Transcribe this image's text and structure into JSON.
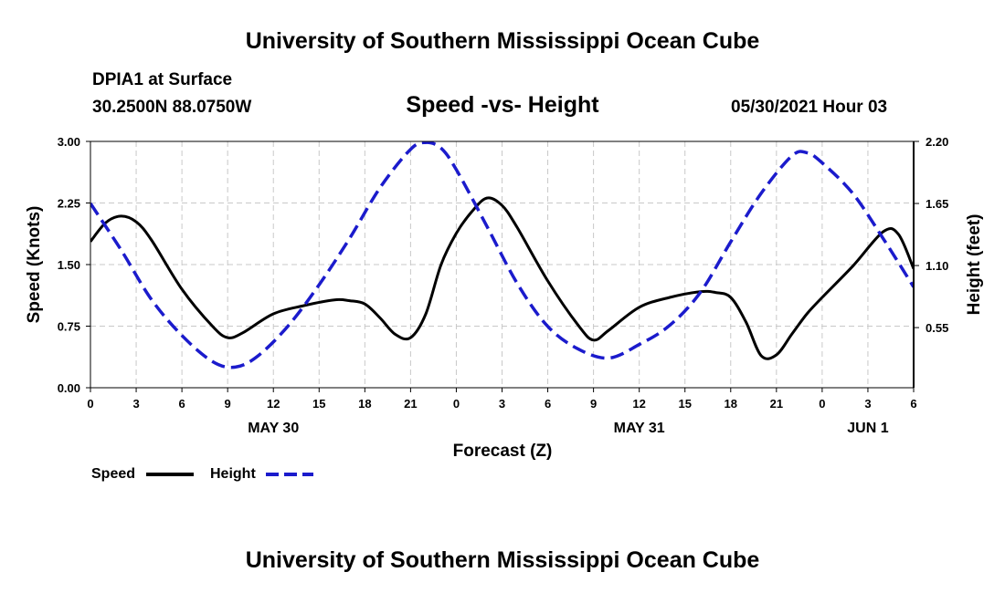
{
  "header": {
    "title": "University of Southern Mississippi Ocean Cube",
    "station": "DPIA1 at Surface",
    "coords": "30.2500N  88.0750W",
    "datetime": "05/30/2021 Hour 03"
  },
  "footer": {
    "title": "University of Southern Mississippi Ocean Cube"
  },
  "chart_data": {
    "type": "line",
    "title": "Speed -vs- Height",
    "xlabel": "Forecast (Z)",
    "ylabel": "Speed (Knots)",
    "ylabel_right": "Height (feet)",
    "xlim": [
      0,
      54
    ],
    "ylim": [
      0,
      3
    ],
    "ylim_right": [
      0.017,
      2.2
    ],
    "grid": true,
    "legend_position": "bottom-left",
    "x_ticks": [
      0,
      3,
      6,
      9,
      12,
      15,
      18,
      21,
      24,
      27,
      30,
      33,
      36,
      39,
      42,
      45,
      48,
      51,
      54
    ],
    "x_tick_labels": [
      "0",
      "3",
      "6",
      "9",
      "12",
      "15",
      "18",
      "21",
      "0",
      "3",
      "6",
      "9",
      "12",
      "15",
      "18",
      "21",
      "0",
      "3",
      "6"
    ],
    "y_ticks": [
      "0.00",
      "0.75",
      "1.50",
      "2.25",
      "3.00"
    ],
    "y_ticks_right": [
      "0.55",
      "1.10",
      "1.65",
      "2.20"
    ],
    "date_labels": [
      {
        "x": 12,
        "label": "MAY 30"
      },
      {
        "x": 36,
        "label": "MAY 31"
      },
      {
        "x": 51,
        "label": "JUN 1"
      }
    ],
    "series": [
      {
        "name": "Speed",
        "axis": "left",
        "color": "#000000",
        "style": "solid",
        "x": [
          0,
          1,
          2,
          3,
          4,
          6,
          8,
          9,
          10,
          12,
          14,
          16,
          17,
          18,
          19,
          20,
          21,
          22,
          23,
          24,
          25,
          26,
          27,
          28,
          30,
          32,
          33,
          34,
          36,
          38,
          40,
          41,
          42,
          43,
          44,
          45,
          46,
          47,
          48,
          50,
          52,
          53,
          54
        ],
        "values": [
          1.78,
          2.01,
          2.09,
          2.02,
          1.8,
          1.2,
          0.75,
          0.61,
          0.67,
          0.9,
          1.0,
          1.07,
          1.06,
          1.02,
          0.85,
          0.65,
          0.61,
          0.9,
          1.5,
          1.88,
          2.14,
          2.31,
          2.22,
          1.95,
          1.3,
          0.76,
          0.58,
          0.7,
          0.98,
          1.1,
          1.17,
          1.16,
          1.1,
          0.8,
          0.39,
          0.4,
          0.65,
          0.9,
          1.1,
          1.48,
          1.9,
          1.87,
          1.45
        ]
      },
      {
        "name": "Height",
        "axis": "right",
        "color": "#1b1bcc",
        "style": "dashed",
        "x": [
          0,
          2,
          4,
          6,
          8,
          9.5,
          11,
          13,
          15,
          17,
          19,
          21,
          22,
          23,
          24,
          26,
          28,
          30,
          32,
          34,
          36,
          38,
          40,
          42,
          44,
          46,
          47,
          48,
          50,
          52,
          54
        ],
        "values": [
          1.65,
          1.24,
          0.8,
          0.48,
          0.25,
          0.2,
          0.3,
          0.57,
          0.93,
          1.34,
          1.79,
          2.13,
          2.19,
          2.14,
          1.95,
          1.45,
          0.94,
          0.56,
          0.36,
          0.28,
          0.4,
          0.57,
          0.86,
          1.31,
          1.74,
          2.07,
          2.1,
          2.01,
          1.74,
          1.34,
          0.91
        ]
      }
    ]
  }
}
